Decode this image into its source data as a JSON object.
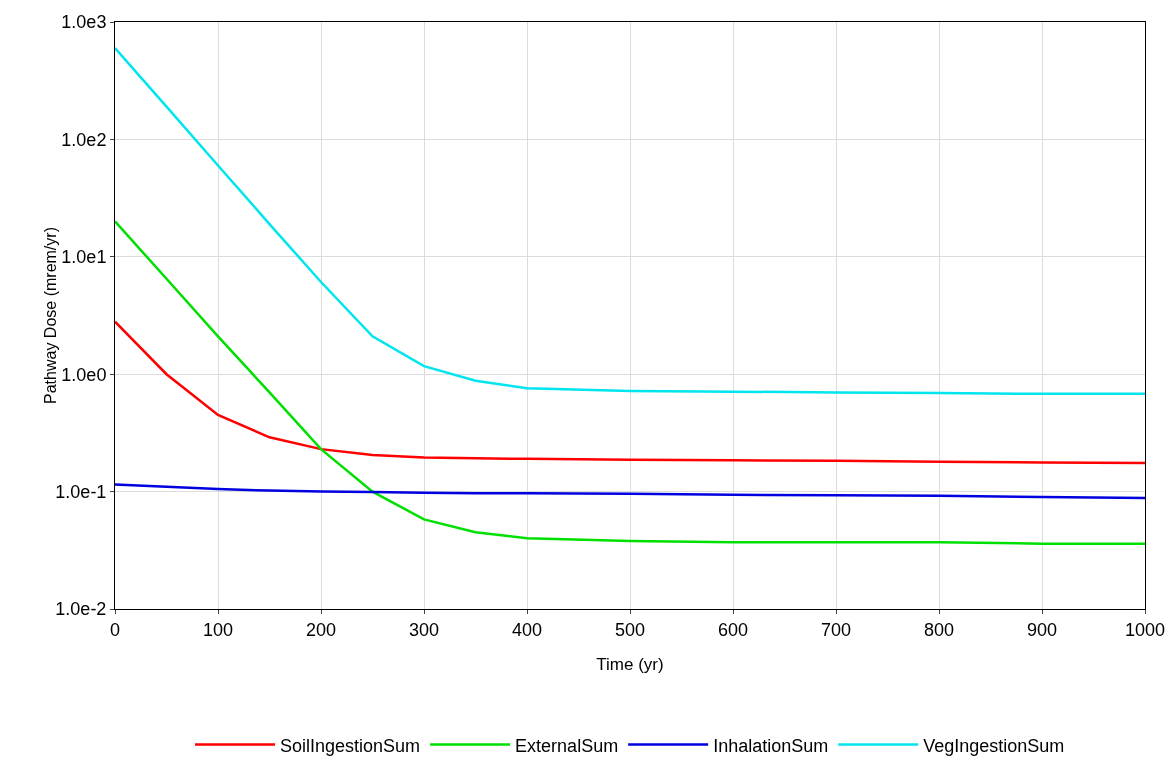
{
  "chart_data": {
    "type": "line",
    "xlabel": "Time (yr)",
    "ylabel": "Pathway Dose (mrem/yr)",
    "log": "y",
    "grid": true,
    "legend": "bottom",
    "line_style": "solid",
    "marker": "none",
    "x": [
      0,
      50,
      100,
      150,
      200,
      250,
      300,
      350,
      400,
      500,
      600,
      700,
      800,
      900,
      1000
    ],
    "xlim": [
      0,
      1000
    ],
    "xticks": [
      0,
      100,
      200,
      300,
      400,
      500,
      600,
      700,
      800,
      900,
      1000
    ],
    "ylim": [
      0.01,
      1000
    ],
    "yticks": [
      {
        "value": 0.01,
        "label": "1.0e-2"
      },
      {
        "value": 0.1,
        "label": "1.0e-1"
      },
      {
        "value": 1,
        "label": "1.0e0"
      },
      {
        "value": 10,
        "label": "1.0e1"
      },
      {
        "value": 100,
        "label": "1.0e2"
      },
      {
        "value": 1000,
        "label": "1.0e3"
      }
    ],
    "series": [
      {
        "name": "SoilIngestionSum",
        "color": "#ff0000",
        "values": [
          2.8,
          1.0,
          0.45,
          0.29,
          0.23,
          0.205,
          0.195,
          0.192,
          0.19,
          0.187,
          0.185,
          0.183,
          0.18,
          0.177,
          0.175
        ]
      },
      {
        "name": "ExternalSum",
        "color": "#00e000",
        "values": [
          20,
          6.5,
          2.1,
          0.7,
          0.23,
          0.1,
          0.058,
          0.045,
          0.04,
          0.038,
          0.037,
          0.037,
          0.037,
          0.036,
          0.036
        ]
      },
      {
        "name": "InhalationSum",
        "color": "#0000e0",
        "values": [
          0.115,
          0.11,
          0.105,
          0.102,
          0.1,
          0.099,
          0.098,
          0.097,
          0.097,
          0.096,
          0.094,
          0.093,
          0.092,
          0.09,
          0.088
        ]
      },
      {
        "name": "VegIngestionSum",
        "color": "#00e5ee",
        "values": [
          600,
          190,
          60,
          19,
          6.1,
          2.1,
          1.17,
          0.88,
          0.76,
          0.72,
          0.71,
          0.7,
          0.69,
          0.68,
          0.68
        ]
      }
    ]
  }
}
